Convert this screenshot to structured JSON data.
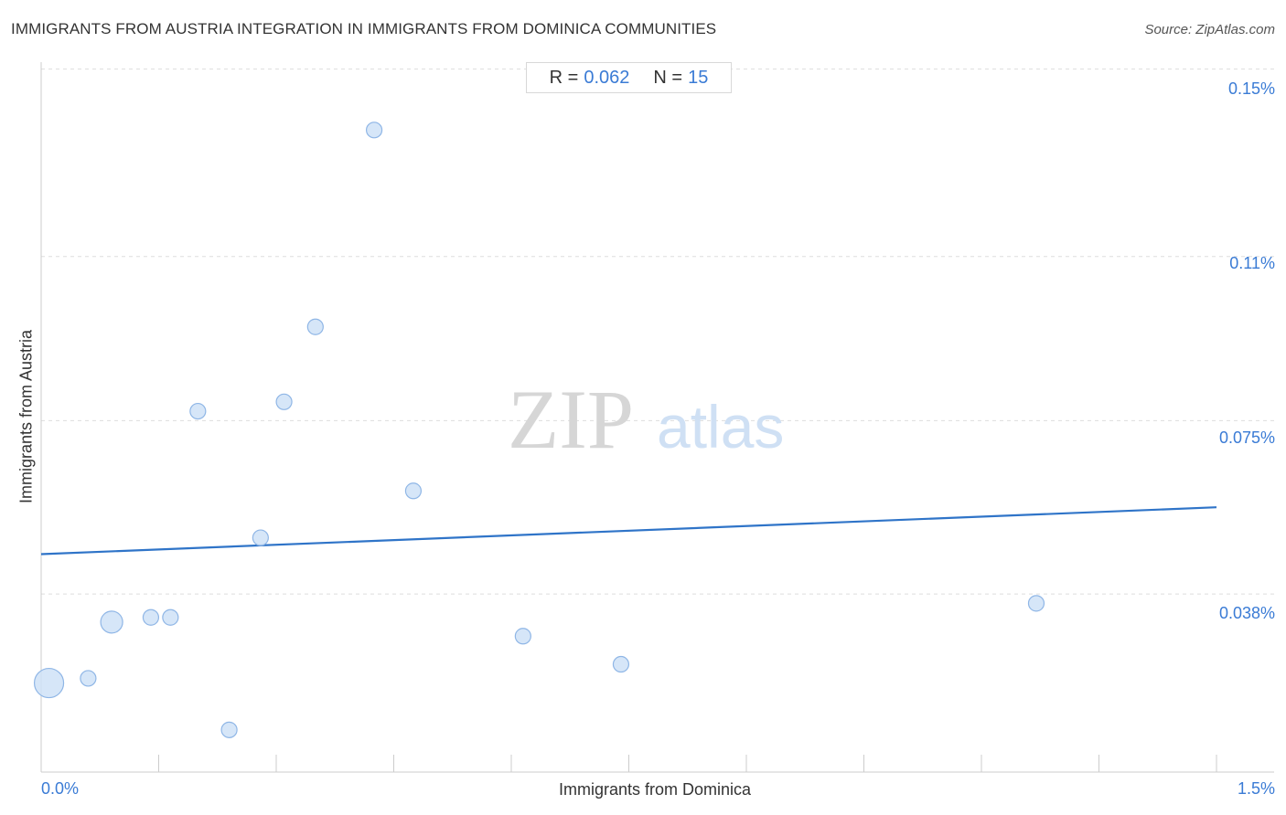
{
  "header": {
    "title": "IMMIGRANTS FROM AUSTRIA INTEGRATION IN IMMIGRANTS FROM DOMINICA COMMUNITIES",
    "source": "Source: ZipAtlas.com"
  },
  "stats": {
    "r_label": "R =",
    "r_value": "0.062",
    "n_label": "N =",
    "n_value": "15"
  },
  "watermark": {
    "zip": "ZIP",
    "atlas": "atlas"
  },
  "colors": {
    "accent": "#3a7bd5",
    "point_fill": "#cfe2f7",
    "point_stroke": "#8fb6e6",
    "grid": "#dddddd",
    "trend": "#2f74c8"
  },
  "chart_data": {
    "type": "scatter",
    "title": "IMMIGRANTS FROM AUSTRIA INTEGRATION IN IMMIGRANTS FROM DOMINICA COMMUNITIES",
    "xlabel": "Immigrants from Dominica",
    "ylabel": "Immigrants from Austria",
    "x_tick_labels": [
      "0.0%",
      "1.5%"
    ],
    "y_tick_labels": [
      "0.15%",
      "0.11%",
      "0.075%",
      "0.038%"
    ],
    "y_ticks": [
      0.15,
      0.11,
      0.075,
      0.038
    ],
    "xlim": [
      0,
      1.5
    ],
    "ylim": [
      0.0,
      0.155
    ],
    "grid": true,
    "x_axis_minor_ticks": 10,
    "points": [
      {
        "x": 0.01,
        "y": 0.019,
        "size": "large"
      },
      {
        "x": 0.06,
        "y": 0.02,
        "size": "small"
      },
      {
        "x": 0.09,
        "y": 0.032,
        "size": "medium"
      },
      {
        "x": 0.14,
        "y": 0.033,
        "size": "small"
      },
      {
        "x": 0.165,
        "y": 0.033,
        "size": "small"
      },
      {
        "x": 0.2,
        "y": 0.077,
        "size": "small"
      },
      {
        "x": 0.24,
        "y": 0.009,
        "size": "small"
      },
      {
        "x": 0.28,
        "y": 0.05,
        "size": "small"
      },
      {
        "x": 0.31,
        "y": 0.079,
        "size": "small"
      },
      {
        "x": 0.35,
        "y": 0.095,
        "size": "small"
      },
      {
        "x": 0.425,
        "y": 0.137,
        "size": "small"
      },
      {
        "x": 0.475,
        "y": 0.06,
        "size": "small"
      },
      {
        "x": 0.615,
        "y": 0.029,
        "size": "small"
      },
      {
        "x": 0.74,
        "y": 0.023,
        "size": "small"
      },
      {
        "x": 1.27,
        "y": 0.036,
        "size": "small"
      }
    ],
    "trendline": {
      "x": [
        0.0,
        1.5
      ],
      "y": [
        0.0465,
        0.0565
      ]
    },
    "stats": {
      "r": 0.062,
      "n": 15
    }
  }
}
